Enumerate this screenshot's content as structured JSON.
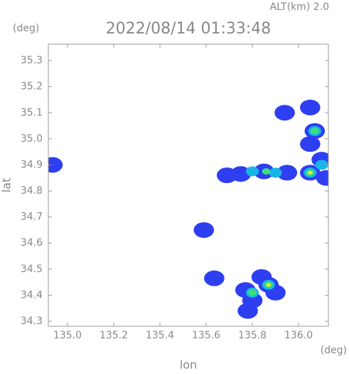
{
  "chart_data": {
    "type": "echo-map",
    "altitude_label": "ALT(km) 2.0",
    "title": "2022/08/14 01:33:48",
    "y_unit": "(deg)",
    "x_unit": "(deg)",
    "ylabel": "lat",
    "xlabel": "lon",
    "xlim": [
      134.917,
      136.129
    ],
    "ylim": [
      34.281,
      35.363
    ],
    "xticks": [
      {
        "value": 135,
        "label": "135.0"
      },
      135.2,
      135.4,
      135.6,
      135.8,
      {
        "value": 136,
        "label": "136.0"
      }
    ],
    "yticks": [
      35.3,
      35.2,
      35.1,
      {
        "value": 35,
        "label": "35.0"
      },
      34.9,
      34.8,
      34.7,
      34.6,
      34.5,
      34.4,
      34.3
    ],
    "layers": [
      {
        "color": "#2d3ff0",
        "x": [
          134.935,
          135.94,
          136.05,
          136.07,
          136.05,
          136.1,
          136.05,
          135.95,
          135.85,
          135.75,
          135.69,
          136.12,
          135.77,
          135.8,
          135.78,
          135.87,
          135.9,
          135.84,
          135.635,
          135.59
        ],
        "y": [
          34.9,
          35.1,
          35.12,
          35.03,
          34.98,
          34.92,
          34.87,
          34.87,
          34.875,
          34.865,
          34.86,
          34.85,
          34.42,
          34.38,
          34.34,
          34.44,
          34.41,
          34.47,
          34.465,
          34.65
        ]
      },
      {
        "color": "#19b4e6",
        "x": [
          136.07,
          136.05,
          135.9,
          135.8,
          136.1,
          135.8,
          135.87
        ],
        "y": [
          35.03,
          34.87,
          34.87,
          34.875,
          34.9,
          34.41,
          34.44
        ]
      },
      {
        "color": "#3ce07a",
        "x": [
          136.07,
          136.05,
          135.86,
          135.8,
          135.87
        ],
        "y": [
          35.03,
          34.87,
          34.875,
          34.41,
          34.44
        ]
      },
      {
        "color": "#e8ee30",
        "x": [
          136.05,
          135.87
        ],
        "y": [
          34.87,
          34.44
        ]
      }
    ]
  }
}
